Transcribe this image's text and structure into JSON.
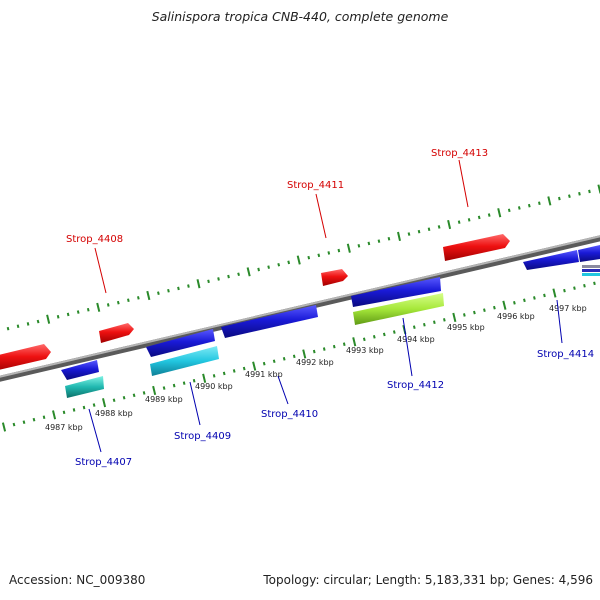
{
  "title": "Salinispora tropica CNB-440, complete genome",
  "footer": {
    "accession": "Accession: NC_009380",
    "summary": "Topology: circular; Length: 5,183,331 bp; Genes: 4,596"
  },
  "colors": {
    "forward_gene": "#ee1111",
    "reverse_gene": "#1a1ad8",
    "cyan_feature": "#22c6e0",
    "green_feature": "#a6e83a",
    "backbone": "#8c8c8c",
    "ticks": "#2a8a2a",
    "forward_label": "#d40000",
    "reverse_label": "#0000b0"
  },
  "scale_labels": [
    "4987 kbp",
    "4988 kbp",
    "4989 kbp",
    "4990 kbp",
    "4991 kbp",
    "4992 kbp",
    "4993 kbp",
    "4994 kbp",
    "4995 kbp",
    "4996 kbp",
    "4997 kbp"
  ],
  "gene_labels": {
    "forward": [
      "Strop_4408",
      "Strop_4411",
      "Strop_4413"
    ],
    "reverse": [
      "Strop_4407",
      "Strop_4409",
      "Strop_4410",
      "Strop_4412",
      "Strop_4414"
    ]
  }
}
